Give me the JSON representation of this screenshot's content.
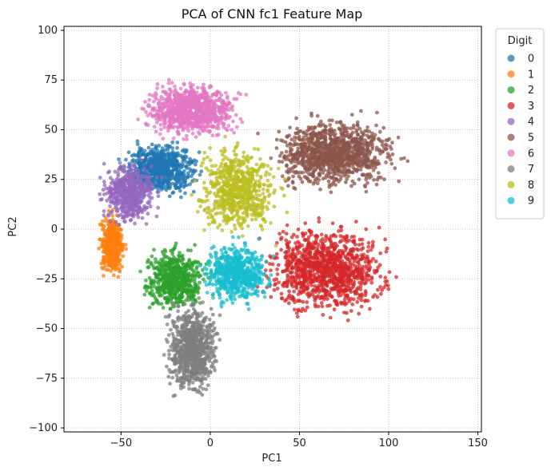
{
  "chart_data": {
    "type": "scatter",
    "title": "PCA of CNN fc1 Feature Map",
    "xlabel": "PC1",
    "ylabel": "PC2",
    "xlim": [
      -82,
      152
    ],
    "ylim": [
      -102,
      102
    ],
    "xticks": [
      -50,
      0,
      50,
      100,
      150
    ],
    "yticks": [
      -100,
      -75,
      -50,
      -25,
      0,
      25,
      50,
      75,
      100
    ],
    "grid": true,
    "grid_style": "dotted",
    "legend_title": "Digit",
    "legend_placement": "outside-top-right",
    "series": [
      {
        "name": "0",
        "color": "#1f77b4",
        "center": [
          -28,
          30
        ],
        "spread": [
          16,
          10
        ],
        "n": 700
      },
      {
        "name": "1",
        "color": "#ff7f0e",
        "center": [
          -55,
          -8
        ],
        "spread": [
          5,
          11
        ],
        "n": 500
      },
      {
        "name": "2",
        "color": "#2ca02c",
        "center": [
          -20,
          -25
        ],
        "spread": [
          13,
          12
        ],
        "n": 600
      },
      {
        "name": "3",
        "color": "#d62728",
        "center": [
          65,
          -20
        ],
        "spread": [
          26,
          17
        ],
        "n": 1100
      },
      {
        "name": "4",
        "color": "#9467bd",
        "center": [
          -45,
          18
        ],
        "spread": [
          12,
          12
        ],
        "n": 500
      },
      {
        "name": "5",
        "color": "#8c564b",
        "center": [
          70,
          38
        ],
        "spread": [
          26,
          13
        ],
        "n": 1100
      },
      {
        "name": "6",
        "color": "#e377c2",
        "center": [
          -10,
          60
        ],
        "spread": [
          20,
          10
        ],
        "n": 900
      },
      {
        "name": "7",
        "color": "#7f7f7f",
        "center": [
          -10,
          -60
        ],
        "spread": [
          11,
          17
        ],
        "n": 800
      },
      {
        "name": "8",
        "color": "#bcbd22",
        "center": [
          15,
          20
        ],
        "spread": [
          17,
          17
        ],
        "n": 700
      },
      {
        "name": "9",
        "color": "#17becf",
        "center": [
          15,
          -22
        ],
        "spread": [
          14,
          12
        ],
        "n": 600
      }
    ]
  }
}
